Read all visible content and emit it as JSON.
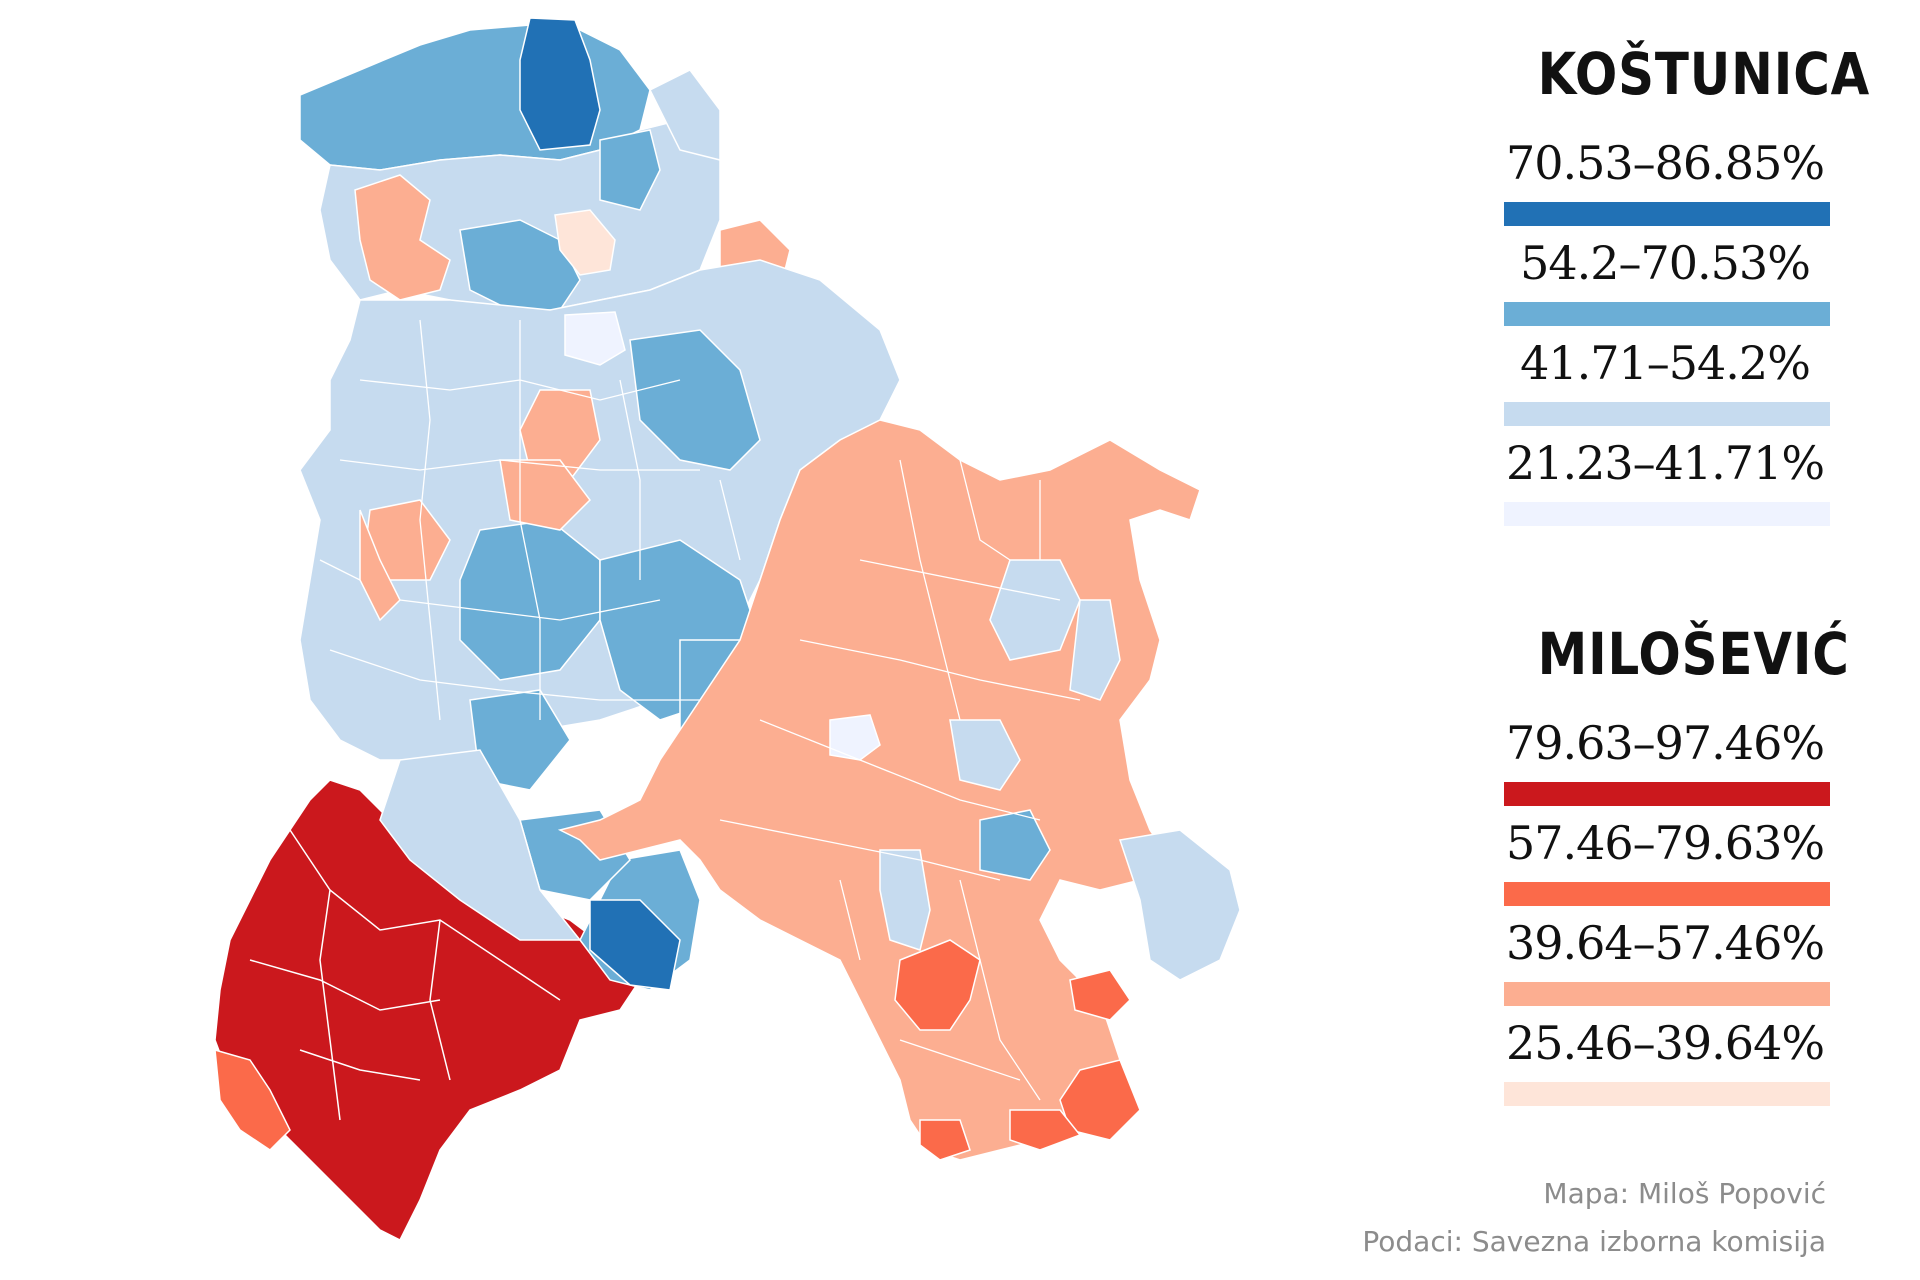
{
  "legend_kostunica": {
    "title": "KOŠTUNICA",
    "entries": [
      {
        "range": "70.53–86.85%",
        "color": "#2171b5"
      },
      {
        "range": "54.2–70.53%",
        "color": "#6baed6"
      },
      {
        "range": "41.71–54.2%",
        "color": "#c6dbef"
      },
      {
        "range": "21.23–41.71%",
        "color": "#eff3ff"
      }
    ]
  },
  "legend_milosevic": {
    "title": "MILOŠEVIĆ",
    "entries": [
      {
        "range": "79.63–97.46%",
        "color": "#cb181d"
      },
      {
        "range": "57.46–79.63%",
        "color": "#fb6a4a"
      },
      {
        "range": "39.64–57.46%",
        "color": "#fcae91"
      },
      {
        "range": "25.46–39.64%",
        "color": "#fee5d9"
      }
    ]
  },
  "credits": {
    "map_line": "Mapa: Miloš Popović",
    "data_line": "Podaci: Savezna izborna komisija"
  },
  "map": {
    "border_color": "#ffffff",
    "background": "#ffffff"
  }
}
